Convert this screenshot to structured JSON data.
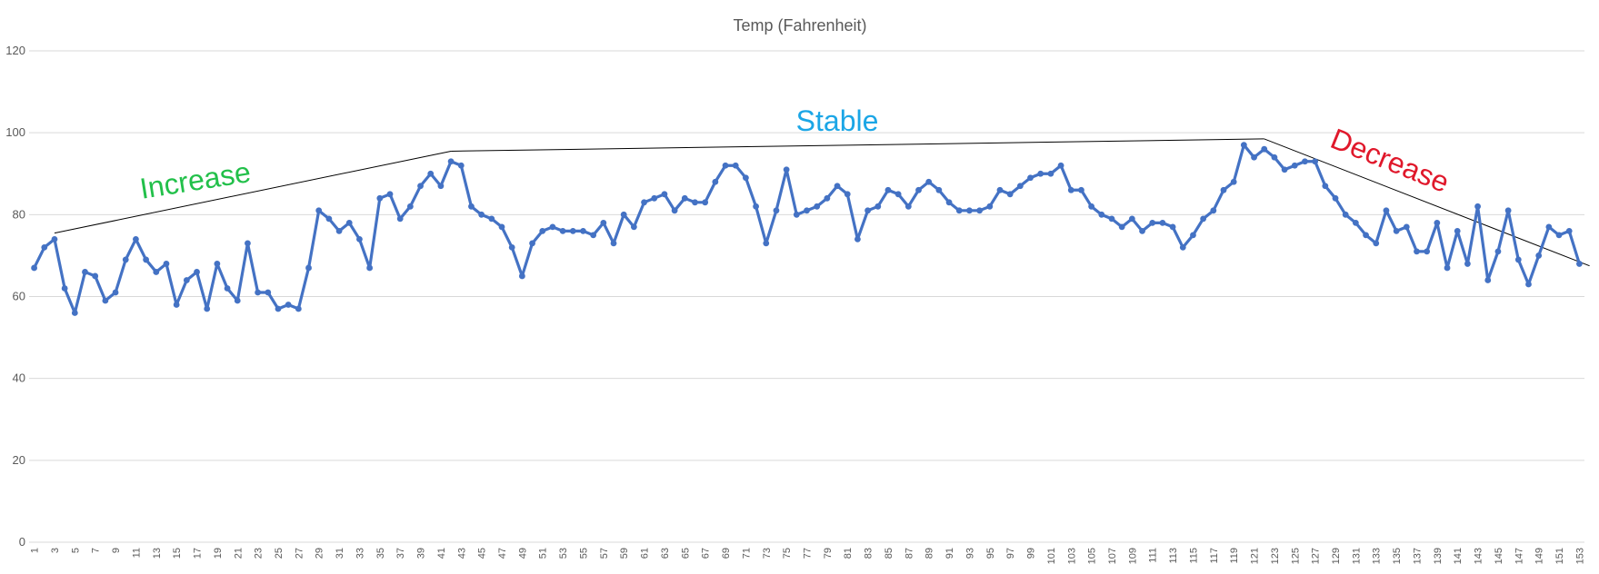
{
  "chart_data": {
    "type": "line",
    "title": "Temp (Fahrenheit)",
    "xlabel": "",
    "ylabel": "",
    "ylim": [
      0,
      120
    ],
    "yticks": [
      0,
      20,
      40,
      60,
      80,
      100,
      120
    ],
    "xticks": [
      1,
      3,
      5,
      7,
      9,
      11,
      13,
      15,
      17,
      19,
      21,
      23,
      25,
      27,
      29,
      31,
      33,
      35,
      37,
      39,
      41,
      43,
      45,
      47,
      49,
      51,
      53,
      55,
      57,
      59,
      61,
      63,
      65,
      67,
      69,
      71,
      73,
      75,
      77,
      79,
      81,
      83,
      85,
      87,
      89,
      91,
      93,
      95,
      97,
      99,
      101,
      103,
      105,
      107,
      109,
      111,
      113,
      115,
      117,
      119,
      121,
      123,
      125,
      127,
      129,
      131,
      133,
      135,
      137,
      139,
      141,
      143,
      145,
      147,
      149,
      151,
      153
    ],
    "grid": true,
    "legend": "none",
    "series": [
      {
        "color": "#4472C4",
        "values": [
          67,
          72,
          74,
          62,
          56,
          66,
          65,
          59,
          61,
          69,
          74,
          69,
          66,
          68,
          58,
          64,
          66,
          57,
          68,
          62,
          59,
          73,
          61,
          61,
          57,
          58,
          57,
          67,
          81,
          79,
          76,
          78,
          74,
          67,
          84,
          85,
          79,
          82,
          87,
          90,
          87,
          93,
          92,
          82,
          80,
          79,
          77,
          72,
          65,
          73,
          76,
          77,
          76,
          76,
          76,
          75,
          78,
          73,
          80,
          77,
          83,
          84,
          85,
          81,
          84,
          83,
          83,
          88,
          92,
          92,
          89,
          82,
          73,
          81,
          91,
          80,
          81,
          82,
          84,
          87,
          85,
          74,
          81,
          82,
          86,
          85,
          82,
          86,
          88,
          86,
          83,
          81,
          81,
          81,
          82,
          86,
          85,
          87,
          89,
          90,
          90,
          92,
          86,
          86,
          82,
          80,
          79,
          77,
          79,
          76,
          78,
          78,
          77,
          72,
          75,
          79,
          81,
          86,
          88,
          97,
          94,
          96,
          94,
          91,
          92,
          93,
          93,
          87,
          84,
          80,
          78,
          75,
          73,
          81,
          76,
          77,
          71,
          71,
          78,
          67,
          76,
          68,
          82,
          64,
          71,
          81,
          69,
          63,
          70,
          77,
          75,
          76,
          68
        ]
      }
    ],
    "trendlines": [
      {
        "from": [
          3,
          75.5
        ],
        "to": [
          42,
          95.5
        ],
        "color": "#000000"
      },
      {
        "from": [
          42,
          95.5
        ],
        "to": [
          122,
          98.5
        ],
        "color": "#000000"
      },
      {
        "from": [
          122,
          98.5
        ],
        "to": [
          154,
          67.5
        ],
        "color": "#000000"
      }
    ],
    "annotations": [
      {
        "text": "Increase",
        "x": 17,
        "y": 86,
        "angle": -9,
        "color": "#22C04A"
      },
      {
        "text": "Stable",
        "x": 80,
        "y": 100.5,
        "angle": 0,
        "color": "#1BA6E6"
      },
      {
        "text": "Decrease",
        "x": 134,
        "y": 91,
        "angle": 22,
        "color": "#E0182B"
      }
    ]
  }
}
